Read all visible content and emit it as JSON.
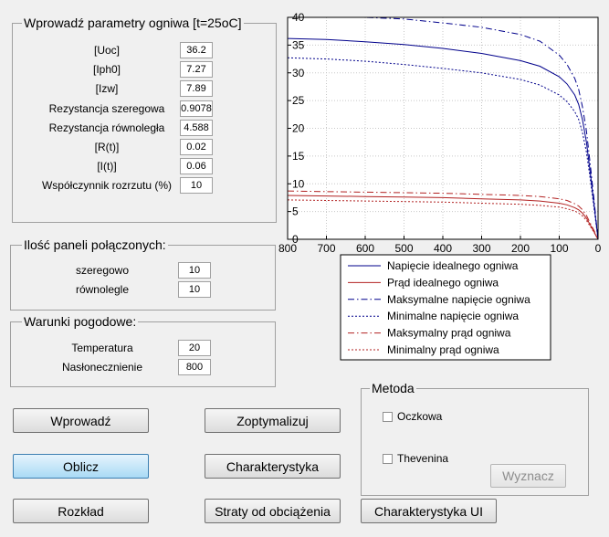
{
  "params_panel": {
    "title": "Wprowadź parametry ogniwa [t=25oC]",
    "rows": [
      {
        "label": "[Uoc]",
        "value": "36.2"
      },
      {
        "label": "[Iph0]",
        "value": "7.27"
      },
      {
        "label": "[Izw]",
        "value": "7.89"
      },
      {
        "label": "Rezystancja szeregowa",
        "value": "0.9078"
      },
      {
        "label": "Rezystancja równoległa",
        "value": "4.588"
      },
      {
        "label": "[R(t)]",
        "value": "0.02"
      },
      {
        "label": "[I(t)]",
        "value": "0.06"
      },
      {
        "label": "Współczynnik rozrzutu (%)",
        "value": "10"
      }
    ]
  },
  "panels_panel": {
    "title": "Ilość paneli połączonych:",
    "rows": [
      {
        "label": "szeregowo",
        "value": "10"
      },
      {
        "label": "równolegle",
        "value": "10"
      }
    ]
  },
  "weather_panel": {
    "title": "Warunki pogodowe:",
    "rows": [
      {
        "label": "Temperatura",
        "value": "20"
      },
      {
        "label": "Nasłonecznienie",
        "value": "800"
      }
    ]
  },
  "method_panel": {
    "title": "Metoda",
    "options": [
      "Oczkowa",
      "Thevenina"
    ],
    "button": "Wyznacz"
  },
  "buttons": {
    "enter": "Wprowadź",
    "optimize": "Zoptymalizuj",
    "calculate": "Oblicz",
    "characteristic": "Charakterystyka",
    "distribution": "Rozkład",
    "load_losses": "Straty od obciążenia",
    "ui_characteristic": "Charakterystyka UI"
  },
  "colors": {
    "voltage": "#00008b",
    "current": "#b22222",
    "axes": "#000000",
    "grid": "#c8c8c8"
  },
  "chart_data": {
    "type": "line",
    "x_reversed": true,
    "xlim": [
      800,
      0
    ],
    "ylim": [
      0,
      40
    ],
    "x_ticks": [
      "800",
      "700",
      "600",
      "500",
      "400",
      "300",
      "200",
      "100",
      "0"
    ],
    "y_ticks": [
      "0",
      "5",
      "10",
      "15",
      "20",
      "25",
      "30",
      "35",
      "40"
    ],
    "grid": "on",
    "legend_position": "bottom-right",
    "x": [
      800,
      700,
      600,
      500,
      400,
      300,
      200,
      150,
      100,
      80,
      60,
      50,
      40,
      30,
      20,
      10,
      5,
      0
    ],
    "series": [
      {
        "name": "Napięcie idealnego ogniwa",
        "style": "solid",
        "color_key": "voltage",
        "values": [
          36.2,
          36.0,
          35.6,
          35.1,
          34.4,
          33.5,
          32.2,
          31.2,
          29.3,
          28.0,
          26.0,
          24.3,
          21.5,
          17.5,
          12.0,
          6.0,
          3.0,
          0
        ]
      },
      {
        "name": "Prąd idealnego ogniwa",
        "style": "solid",
        "color_key": "current",
        "values": [
          7.9,
          7.8,
          7.7,
          7.6,
          7.5,
          7.3,
          7.1,
          6.9,
          6.5,
          6.2,
          5.7,
          5.3,
          4.7,
          3.8,
          2.6,
          1.3,
          0.6,
          0
        ]
      },
      {
        "name": "Maksymalne napięcie ogniwa",
        "style": "dashdot",
        "color_key": "voltage",
        "values": [
          40.0,
          40.0,
          40.0,
          39.7,
          39.0,
          38.2,
          36.9,
          35.7,
          33.2,
          31.5,
          29.0,
          27.0,
          23.8,
          19.5,
          13.5,
          6.8,
          3.4,
          0
        ]
      },
      {
        "name": "Minimalne napięcie ogniwa",
        "style": "dotted",
        "color_key": "voltage",
        "values": [
          32.7,
          32.5,
          32.1,
          31.5,
          30.8,
          30.0,
          28.8,
          27.8,
          26.0,
          24.8,
          23.0,
          21.6,
          19.2,
          15.7,
          10.8,
          5.4,
          2.7,
          0
        ]
      },
      {
        "name": "Maksymalny prąd ogniwa",
        "style": "dashdot",
        "color_key": "current",
        "values": [
          8.7,
          8.6,
          8.5,
          8.4,
          8.3,
          8.1,
          7.9,
          7.7,
          7.3,
          7.0,
          6.4,
          6.0,
          5.3,
          4.3,
          2.9,
          1.5,
          0.7,
          0
        ]
      },
      {
        "name": "Minimalny prąd ogniwa",
        "style": "dotted",
        "color_key": "current",
        "values": [
          7.1,
          7.0,
          6.9,
          6.8,
          6.7,
          6.5,
          6.3,
          6.1,
          5.8,
          5.5,
          5.1,
          4.7,
          4.2,
          3.4,
          2.3,
          1.2,
          0.6,
          0
        ]
      }
    ]
  }
}
